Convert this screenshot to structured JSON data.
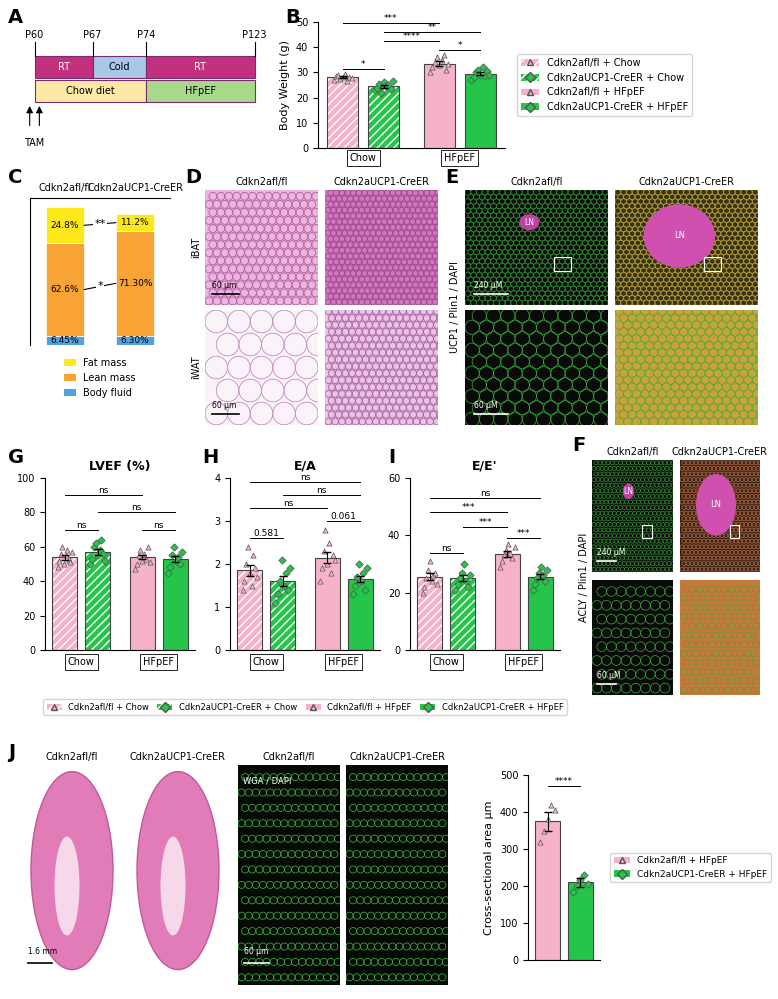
{
  "timeline": {
    "panel": "A",
    "ticks": [
      "P60",
      "P67",
      "P74",
      "P123"
    ],
    "rows": [
      [
        {
          "label": "RT",
          "from": 0,
          "to": 1,
          "color": "#c2307e"
        },
        {
          "label": "Cold",
          "from": 1,
          "to": 2,
          "color": "#a9c7e8"
        },
        {
          "label": "RT",
          "from": 2,
          "to": 3,
          "color": "#c2307e"
        }
      ],
      [
        {
          "label": "Chow diet",
          "from": 0,
          "to": 2,
          "color": "#fde8a6"
        },
        {
          "label": "HFpEF",
          "from": 2,
          "to": 3,
          "color": "#a8d98a"
        }
      ]
    ],
    "event": {
      "label": "TAM",
      "at": 0
    }
  },
  "chart_data": [
    {
      "panel": "B",
      "type": "bar",
      "ylabel": "Body Weight (g)",
      "categories": [
        "Chow",
        "HFpEF"
      ],
      "ylim": [
        0,
        50
      ],
      "yticks": [
        0,
        10,
        20,
        30,
        40,
        50
      ],
      "tick_labels": "y",
      "legend": "right",
      "series": [
        {
          "name": "Cdkn2afl/fl + Chow",
          "color": "#f6b3c8",
          "marker": "triangle",
          "values": [
            28.0,
            null
          ],
          "errors": [
            0.4,
            null
          ],
          "points": [
            [
              27,
              28.5,
              29,
              27.5,
              28,
              29.5,
              26.5,
              28.2,
              27.8
            ],
            null
          ]
        },
        {
          "name": "Cdkn2aUCP1-CreER + Chow",
          "color": "#25c44a",
          "marker": "diamond",
          "values": [
            24.5,
            null
          ],
          "errors": [
            0.6,
            null
          ],
          "points": [
            [
              23,
              24,
              25.5,
              22,
              26,
              24.5,
              25,
              23.5,
              26.5
            ],
            null
          ]
        },
        {
          "name": "Cdkn2afl/fl + HFpEF",
          "color": "#f6b3c8",
          "marker": "triangle",
          "values": [
            null,
            33.5
          ],
          "errors": [
            null,
            0.9
          ],
          "points": [
            null,
            [
              30,
              32,
              34,
              36,
              33,
              35,
              37,
              31,
              33.5
            ]
          ]
        },
        {
          "name": "Cdkn2aUCP1-CreER + HFpEF",
          "color": "#25c44a",
          "marker": "diamond",
          "values": [
            null,
            29.5
          ],
          "errors": [
            null,
            0.6
          ],
          "points": [
            null,
            [
              27,
              28,
              30,
              31,
              29,
              32,
              28.5,
              30.5,
              29
            ]
          ]
        }
      ],
      "brackets": [
        {
          "label": "*",
          "bars": [
            0,
            1
          ],
          "y": 31.5
        },
        {
          "label": "*",
          "bars": [
            2,
            3
          ],
          "y": 39
        },
        {
          "label": "****",
          "bars": [
            1,
            2
          ],
          "y": 42.5
        },
        {
          "label": "**",
          "bars": [
            1,
            3
          ],
          "y": 46
        },
        {
          "label": "***",
          "bars": [
            0,
            2
          ],
          "y": 49.5
        }
      ]
    },
    {
      "panel": "C",
      "type": "bar",
      "stacked": true,
      "data_labels": true,
      "categories": [
        "Cdkn2afl/fl",
        "Cdkn2aUCP1-CreER"
      ],
      "ylim": [
        0,
        100
      ],
      "yticks": [],
      "tick_labels": "x",
      "legend": "below",
      "series": [
        {
          "name": "Body fluid",
          "color": "#4ea3e0",
          "values": [
            6.45,
            6.3
          ],
          "value_labels": [
            "6.45%",
            "6.30%"
          ]
        },
        {
          "name": "Lean mass",
          "color": "#f7a335",
          "values": [
            62.6,
            71.3
          ],
          "value_labels": [
            "62.6%",
            "71.30%"
          ]
        },
        {
          "name": "Fat mass",
          "color": "#ffe81a",
          "values": [
            24.8,
            11.2
          ],
          "value_labels": [
            "24.8%",
            "11.2%"
          ]
        }
      ],
      "brackets": [
        {
          "label": "**",
          "series": "Fat mass"
        },
        {
          "label": "*",
          "series": "Lean mass"
        }
      ]
    },
    {
      "panel": "G",
      "type": "bar",
      "title": "LVEF (%)",
      "categories": [
        "Chow",
        "HFpEF"
      ],
      "ylim": [
        0,
        100
      ],
      "yticks": [
        0,
        20,
        40,
        60,
        80,
        100
      ],
      "tick_labels": "y",
      "series": [
        {
          "color": "#f6b3c8",
          "marker": "triangle",
          "values": [
            54,
            null
          ],
          "errors": [
            1.5,
            null
          ],
          "points": [
            [
              48,
              52,
              56,
              60,
              50,
              55,
              58,
              53,
              51,
              57
            ],
            null
          ]
        },
        {
          "color": "#25c44a",
          "marker": "diamond",
          "values": [
            57,
            null
          ],
          "errors": [
            1.6,
            null
          ],
          "points": [
            [
              50,
              53,
              60,
              62,
              55,
              58,
              64,
              56,
              52
            ],
            null
          ]
        },
        {
          "color": "#f6b3c8",
          "marker": "triangle",
          "values": [
            null,
            54
          ],
          "errors": [
            null,
            1.3
          ],
          "points": [
            null,
            [
              47,
              50,
              55,
              58,
              52,
              56,
              53,
              60,
              51
            ]
          ]
        },
        {
          "color": "#25c44a",
          "marker": "diamond",
          "values": [
            null,
            53
          ],
          "errors": [
            null,
            1.7
          ],
          "points": [
            null,
            [
              45,
              48,
              55,
              60,
              52,
              54,
              50,
              57
            ]
          ]
        }
      ],
      "brackets": [
        {
          "label": "ns",
          "bars": [
            0,
            1
          ],
          "y": 70
        },
        {
          "label": "ns",
          "bars": [
            2,
            3
          ],
          "y": 70
        },
        {
          "label": "ns",
          "bars": [
            1,
            3
          ],
          "y": 80
        },
        {
          "label": "ns",
          "bars": [
            0,
            2
          ],
          "y": 90
        }
      ]
    },
    {
      "panel": "H",
      "type": "bar",
      "title": "E/A",
      "categories": [
        "Chow",
        "HFpEF"
      ],
      "ylim": [
        0,
        4
      ],
      "yticks": [
        0,
        1,
        2,
        3,
        4
      ],
      "tick_labels": "y",
      "series": [
        {
          "color": "#f6b3c8",
          "marker": "triangle",
          "values": [
            1.85,
            null
          ],
          "errors": [
            0.12,
            null
          ],
          "points": [
            [
              1.4,
              1.6,
              2.0,
              2.4,
              1.8,
              1.5,
              2.2,
              1.9,
              1.7
            ],
            null
          ]
        },
        {
          "color": "#25c44a",
          "marker": "diamond",
          "values": [
            1.6,
            null
          ],
          "errors": [
            0.12,
            null
          ],
          "points": [
            [
              1.1,
              1.3,
              1.6,
              2.1,
              1.5,
              1.8,
              1.4,
              1.9
            ],
            null
          ]
        },
        {
          "color": "#f6b3c8",
          "marker": "triangle",
          "values": [
            null,
            2.15
          ],
          "errors": [
            null,
            0.13
          ],
          "points": [
            null,
            [
              1.6,
              1.9,
              2.3,
              2.8,
              2.0,
              2.5,
              1.8,
              2.2,
              2.1
            ]
          ]
        },
        {
          "color": "#25c44a",
          "marker": "diamond",
          "values": [
            null,
            1.65
          ],
          "errors": [
            null,
            0.08
          ],
          "points": [
            null,
            [
              1.3,
              1.5,
              1.7,
              2.0,
              1.6,
              1.8,
              1.4,
              1.9
            ]
          ]
        }
      ],
      "brackets": [
        {
          "label": "0.581",
          "bars": [
            0,
            1
          ],
          "y": 2.6
        },
        {
          "label": "0.061",
          "bars": [
            2,
            3
          ],
          "y": 3.0
        },
        {
          "label": "ns",
          "bars": [
            0,
            2
          ],
          "y": 3.3
        },
        {
          "label": "ns",
          "bars": [
            1,
            3
          ],
          "y": 3.6
        },
        {
          "label": "ns",
          "bars": [
            0,
            3
          ],
          "y": 3.9
        }
      ]
    },
    {
      "panel": "I",
      "type": "bar",
      "title": "E/E'",
      "categories": [
        "Chow",
        "HFpEF"
      ],
      "ylim": [
        0,
        60
      ],
      "yticks": [
        0,
        20,
        40,
        60
      ],
      "tick_labels": "y",
      "legend": "below",
      "series": [
        {
          "name": "Cdkn2afl/fl + Chow",
          "color": "#f6b3c8",
          "marker": "triangle",
          "values": [
            25.5,
            null
          ],
          "errors": [
            1.2,
            null
          ],
          "points": [
            [
              20,
              22,
              25,
              28,
              31,
              24,
              26,
              27,
              23
            ],
            null
          ]
        },
        {
          "name": "Cdkn2aUCP1-CreER + Chow",
          "color": "#25c44a",
          "marker": "diamond",
          "values": [
            25,
            null
          ],
          "errors": [
            1.0,
            null
          ],
          "points": [
            [
              21,
              23,
              25,
              27,
              30,
              24,
              22,
              26
            ],
            null
          ]
        },
        {
          "name": "Cdkn2afl/fl + HFpEF",
          "color": "#f6b3c8",
          "marker": "triangle",
          "values": [
            null,
            33.5
          ],
          "errors": [
            null,
            0.9
          ],
          "points": [
            null,
            [
              29,
              31,
              33,
              35,
              37,
              34,
              32,
              36
            ]
          ]
        },
        {
          "name": "Cdkn2aUCP1-CreER + HFpEF",
          "color": "#25c44a",
          "marker": "diamond",
          "values": [
            null,
            25.5
          ],
          "errors": [
            null,
            0.9
          ],
          "points": [
            null,
            [
              21,
              23,
              25,
              27,
              29,
              26,
              24,
              28
            ]
          ]
        }
      ],
      "brackets": [
        {
          "label": "ns",
          "bars": [
            0,
            1
          ],
          "y": 34
        },
        {
          "label": "***",
          "bars": [
            2,
            3
          ],
          "y": 39
        },
        {
          "label": "***",
          "bars": [
            1,
            2
          ],
          "y": 43
        },
        {
          "label": "***",
          "bars": [
            0,
            2
          ],
          "y": 48
        },
        {
          "label": "ns",
          "bars": [
            0,
            3
          ],
          "y": 53
        }
      ]
    },
    {
      "type": "bar",
      "ylabel": "Cross-sectional area µm",
      "categories": [
        null
      ],
      "ylim": [
        0,
        500
      ],
      "yticks": [
        0,
        100,
        200,
        300,
        400,
        500
      ],
      "tick_labels": "y",
      "legend": "right",
      "series": [
        {
          "name": "Cdkn2afl/fl + HFpEF",
          "color": "#f6b3c8",
          "marker": "triangle",
          "values": [
            375
          ],
          "errors": [
            25
          ],
          "points": [
            [
              320,
              350,
              380,
              420,
              405
            ]
          ]
        },
        {
          "name": "Cdkn2aUCP1-CreER + HFpEF",
          "color": "#25c44a",
          "marker": "diamond",
          "values": [
            210
          ],
          "errors": [
            12
          ],
          "points": [
            [
              185,
              200,
              215,
              230,
              205
            ]
          ]
        }
      ],
      "brackets": [
        {
          "label": "****",
          "bars": [
            0,
            1
          ],
          "y": 470
        }
      ]
    }
  ],
  "images": [
    {
      "panel": "D",
      "columns": [
        "Cdkn2afl/fl",
        "Cdkn2aUCP1-CreER"
      ],
      "rows": [
        "iBAT",
        "iWAT"
      ],
      "scale_bars": [
        "60 µm",
        "60 µm"
      ]
    },
    {
      "panel": "E",
      "columns": [
        "Cdkn2afl/fl",
        "Cdkn2aUCP1-CreER"
      ],
      "channel_label": "UCP1 / Plin1 / DAPI",
      "region_label": "LN",
      "scale_bars": [
        "240 µM",
        "60 µM"
      ]
    },
    {
      "panel": "F",
      "columns": [
        "Cdkn2afl/fl",
        "Cdkn2aUCP1-CreER"
      ],
      "channel_label": "ACLY / Plin1 / DAPI",
      "region_label": "LN",
      "scale_bars": [
        "240 µM",
        "60 µM"
      ]
    },
    {
      "panel": "J",
      "columns": [
        "Cdkn2afl/fl",
        "Cdkn2aUCP1-CreER",
        "Cdkn2afl/fl",
        "Cdkn2aUCP1-CreER"
      ],
      "channel_label": "WGA / DAPI",
      "scale_bars": [
        "1.6 mm",
        "60 µm"
      ]
    }
  ]
}
